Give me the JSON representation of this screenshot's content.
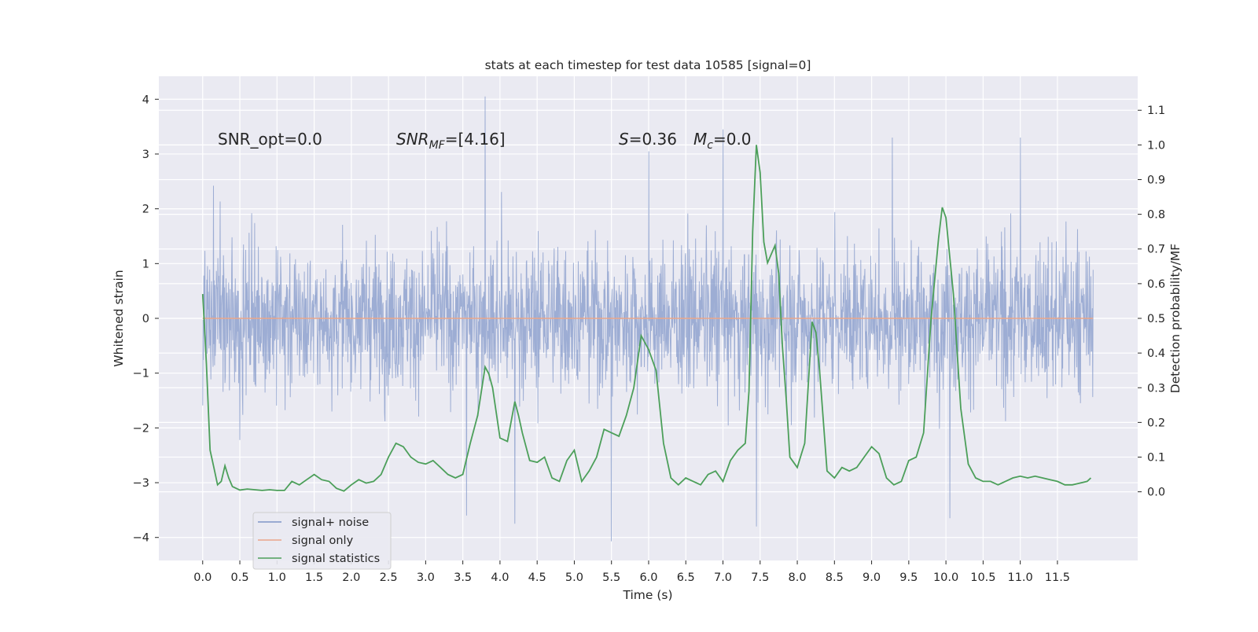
{
  "chart_data": {
    "type": "line",
    "title": "stats at each timestep for test data 10585 [signal=0]",
    "xlabel": "Time (s)",
    "ylabel": "Whitened strain",
    "ylabel_right": "Detection probability/MF",
    "xlim": [
      -0.59,
      12.58
    ],
    "ylim": [
      -4.42,
      4.42
    ],
    "ylim_right": [
      -0.198,
      1.198
    ],
    "x_ticks": [
      "0.0",
      "0.5",
      "1.0",
      "1.5",
      "2.0",
      "2.5",
      "3.0",
      "3.5",
      "4.0",
      "4.5",
      "5.0",
      "5.5",
      "6.0",
      "6.5",
      "7.0",
      "7.5",
      "8.0",
      "8.5",
      "9.0",
      "9.5",
      "10.0",
      "10.5",
      "11.0",
      "11.5"
    ],
    "y_ticks": [
      "4",
      "3",
      "2",
      "1",
      "0",
      "−1",
      "−2",
      "−3",
      "−4"
    ],
    "y_ticks_right": [
      "1.1",
      "1.0",
      "0.9",
      "0.8",
      "0.7",
      "0.6",
      "0.5",
      "0.4",
      "0.3",
      "0.2",
      "0.1",
      "0.0"
    ],
    "grid": true,
    "legend_position": "lower-left",
    "annotations": {
      "snr_opt": "SNR_opt=0.0",
      "snr_mf_base": "SNR",
      "snr_mf_sub": "MF",
      "snr_mf_rest": "=[4.16]",
      "s_var": "S",
      "s_rest": "=0.36",
      "mc_var": "M",
      "mc_sub": "c",
      "mc_rest": "=0.0"
    },
    "series": [
      {
        "name": "signal+ noise",
        "color": "#8096c8",
        "description": "whitened strain, approx. gaussian noise, std ~0.9, spikes up to ~4",
        "x_range": [
          0.0,
          11.98
        ],
        "envelope_min": -4.1,
        "envelope_max": 4.05,
        "spikes": [
          [
            3.8,
            4.05
          ],
          [
            5.5,
            -4.07
          ],
          [
            3.55,
            -3.6
          ],
          [
            7.45,
            -3.8
          ],
          [
            10.05,
            -3.65
          ],
          [
            4.2,
            -3.75
          ],
          [
            6.0,
            3.05
          ],
          [
            7.0,
            3.45
          ],
          [
            9.28,
            3.3
          ],
          [
            11.0,
            3.3
          ]
        ]
      },
      {
        "name": "signal only",
        "color": "#e9a58a",
        "x": [
          0.0,
          11.98
        ],
        "y": [
          0.0,
          0.0
        ]
      },
      {
        "name": "signal statistics",
        "color": "#4c9f5a",
        "axis": "right",
        "x": [
          0.0,
          0.05,
          0.1,
          0.15,
          0.2,
          0.25,
          0.3,
          0.35,
          0.4,
          0.5,
          0.6,
          0.7,
          0.8,
          0.9,
          1.0,
          1.1,
          1.2,
          1.3,
          1.4,
          1.5,
          1.6,
          1.7,
          1.8,
          1.9,
          2.0,
          2.1,
          2.2,
          2.3,
          2.4,
          2.5,
          2.6,
          2.7,
          2.8,
          2.9,
          3.0,
          3.1,
          3.2,
          3.3,
          3.4,
          3.5,
          3.6,
          3.7,
          3.8,
          3.85,
          3.9,
          4.0,
          4.1,
          4.2,
          4.25,
          4.3,
          4.4,
          4.5,
          4.6,
          4.7,
          4.8,
          4.9,
          5.0,
          5.1,
          5.2,
          5.3,
          5.4,
          5.5,
          5.6,
          5.7,
          5.8,
          5.9,
          6.0,
          6.1,
          6.2,
          6.3,
          6.4,
          6.5,
          6.6,
          6.7,
          6.8,
          6.9,
          7.0,
          7.1,
          7.2,
          7.3,
          7.35,
          7.4,
          7.45,
          7.5,
          7.55,
          7.6,
          7.7,
          7.75,
          7.8,
          7.85,
          7.9,
          8.0,
          8.1,
          8.2,
          8.25,
          8.3,
          8.4,
          8.5,
          8.6,
          8.7,
          8.8,
          8.9,
          9.0,
          9.1,
          9.2,
          9.3,
          9.4,
          9.5,
          9.6,
          9.7,
          9.8,
          9.9,
          9.95,
          10.0,
          10.1,
          10.2,
          10.3,
          10.4,
          10.5,
          10.6,
          10.7,
          10.8,
          10.9,
          11.0,
          11.1,
          11.2,
          11.3,
          11.4,
          11.5,
          11.6,
          11.7,
          11.8,
          11.9,
          11.95
        ],
        "y": [
          0.57,
          0.37,
          0.12,
          0.07,
          0.02,
          0.03,
          0.075,
          0.04,
          0.015,
          0.005,
          0.008,
          0.006,
          0.004,
          0.006,
          0.004,
          0.004,
          0.03,
          0.02,
          0.035,
          0.05,
          0.035,
          0.03,
          0.01,
          0.002,
          0.02,
          0.035,
          0.025,
          0.03,
          0.05,
          0.1,
          0.14,
          0.13,
          0.1,
          0.085,
          0.08,
          0.09,
          0.07,
          0.05,
          0.04,
          0.05,
          0.14,
          0.22,
          0.36,
          0.34,
          0.3,
          0.155,
          0.145,
          0.26,
          0.22,
          0.17,
          0.09,
          0.085,
          0.1,
          0.04,
          0.03,
          0.09,
          0.12,
          0.03,
          0.06,
          0.1,
          0.18,
          0.17,
          0.16,
          0.22,
          0.3,
          0.45,
          0.41,
          0.35,
          0.14,
          0.04,
          0.02,
          0.04,
          0.03,
          0.02,
          0.05,
          0.06,
          0.03,
          0.09,
          0.12,
          0.14,
          0.29,
          0.75,
          1.0,
          0.92,
          0.72,
          0.66,
          0.71,
          0.63,
          0.42,
          0.27,
          0.1,
          0.07,
          0.14,
          0.49,
          0.46,
          0.35,
          0.06,
          0.04,
          0.07,
          0.06,
          0.07,
          0.1,
          0.13,
          0.11,
          0.04,
          0.02,
          0.03,
          0.09,
          0.1,
          0.17,
          0.5,
          0.73,
          0.82,
          0.79,
          0.57,
          0.24,
          0.08,
          0.04,
          0.03,
          0.03,
          0.02,
          0.03,
          0.04,
          0.045,
          0.04,
          0.045,
          0.04,
          0.035,
          0.03,
          0.02,
          0.02,
          0.025,
          0.03,
          0.04
        ]
      }
    ]
  }
}
